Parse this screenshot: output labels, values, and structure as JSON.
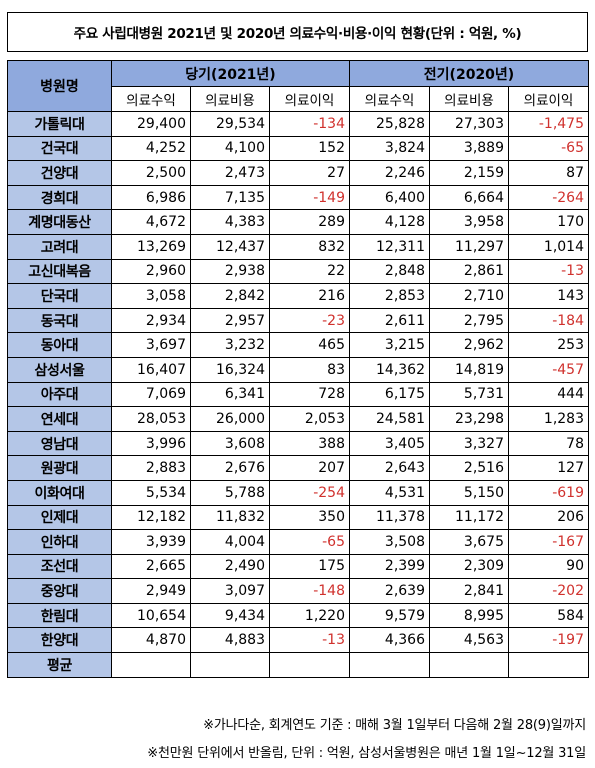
{
  "title": "주요 사립대병원 2021년 및 2020년 의료수익·비용·이익 현황(단위 : 억원, %)",
  "header": {
    "hospital": "병원명",
    "current_period": "당기(2021년)",
    "previous_period": "전기(2020년)",
    "columns": [
      "의료수익",
      "의료비용",
      "의료이익",
      "의료수익",
      "의료비용",
      "의료이익"
    ]
  },
  "rows": [
    {
      "name": "가톨릭대",
      "values": [
        "29,400",
        "29,534",
        "-134",
        "25,828",
        "27,303",
        "-1,475"
      ]
    },
    {
      "name": "건국대",
      "values": [
        "4,252",
        "4,100",
        "152",
        "3,824",
        "3,889",
        "-65"
      ]
    },
    {
      "name": "건양대",
      "values": [
        "2,500",
        "2,473",
        "27",
        "2,246",
        "2,159",
        "87"
      ]
    },
    {
      "name": "경희대",
      "values": [
        "6,986",
        "7,135",
        "-149",
        "6,400",
        "6,664",
        "-264"
      ]
    },
    {
      "name": "계명대동산",
      "values": [
        "4,672",
        "4,383",
        "289",
        "4,128",
        "3,958",
        "170"
      ]
    },
    {
      "name": "고려대",
      "values": [
        "13,269",
        "12,437",
        "832",
        "12,311",
        "11,297",
        "1,014"
      ]
    },
    {
      "name": "고신대복음",
      "values": [
        "2,960",
        "2,938",
        "22",
        "2,848",
        "2,861",
        "-13"
      ]
    },
    {
      "name": "단국대",
      "values": [
        "3,058",
        "2,842",
        "216",
        "2,853",
        "2,710",
        "143"
      ]
    },
    {
      "name": "동국대",
      "values": [
        "2,934",
        "2,957",
        "-23",
        "2,611",
        "2,795",
        "-184"
      ]
    },
    {
      "name": "동아대",
      "values": [
        "3,697",
        "3,232",
        "465",
        "3,215",
        "2,962",
        "253"
      ]
    },
    {
      "name": "삼성서울",
      "values": [
        "16,407",
        "16,324",
        "83",
        "14,362",
        "14,819",
        "-457"
      ]
    },
    {
      "name": "아주대",
      "values": [
        "7,069",
        "6,341",
        "728",
        "6,175",
        "5,731",
        "444"
      ]
    },
    {
      "name": "연세대",
      "values": [
        "28,053",
        "26,000",
        "2,053",
        "24,581",
        "23,298",
        "1,283"
      ]
    },
    {
      "name": "영남대",
      "values": [
        "3,996",
        "3,608",
        "388",
        "3,405",
        "3,327",
        "78"
      ]
    },
    {
      "name": "원광대",
      "values": [
        "2,883",
        "2,676",
        "207",
        "2,643",
        "2,516",
        "127"
      ]
    },
    {
      "name": "이화여대",
      "values": [
        "5,534",
        "5,788",
        "-254",
        "4,531",
        "5,150",
        "-619"
      ]
    },
    {
      "name": "인제대",
      "values": [
        "12,182",
        "11,832",
        "350",
        "11,378",
        "11,172",
        "206"
      ]
    },
    {
      "name": "인하대",
      "values": [
        "3,939",
        "4,004",
        "-65",
        "3,508",
        "3,675",
        "-167"
      ]
    },
    {
      "name": "조선대",
      "values": [
        "2,665",
        "2,490",
        "175",
        "2,399",
        "2,309",
        "90"
      ]
    },
    {
      "name": "중앙대",
      "values": [
        "2,949",
        "3,097",
        "-148",
        "2,639",
        "2,841",
        "-202"
      ]
    },
    {
      "name": "한림대",
      "values": [
        "10,654",
        "9,434",
        "1,220",
        "9,579",
        "8,995",
        "584"
      ]
    },
    {
      "name": "한양대",
      "values": [
        "4,870",
        "4,883",
        "-13",
        "4,366",
        "4,563",
        "-197"
      ]
    }
  ],
  "average_row": {
    "name": "평균",
    "values": [
      "",
      "",
      "",
      "",
      "",
      ""
    ]
  },
  "notes": [
    "※가나다순, 회계연도 기준 : 매해 3월 1일부터 다음해 2월 28(9)일까지",
    "※천만원 단위에서 반올림, 단위 : 억원, 삼성서울병원은 매년 1월 1일~12월 31일"
  ],
  "colors": {
    "header_blue": "#8fa9dd",
    "name_blue": "#b4c6e7",
    "negative": "#d0312d"
  }
}
